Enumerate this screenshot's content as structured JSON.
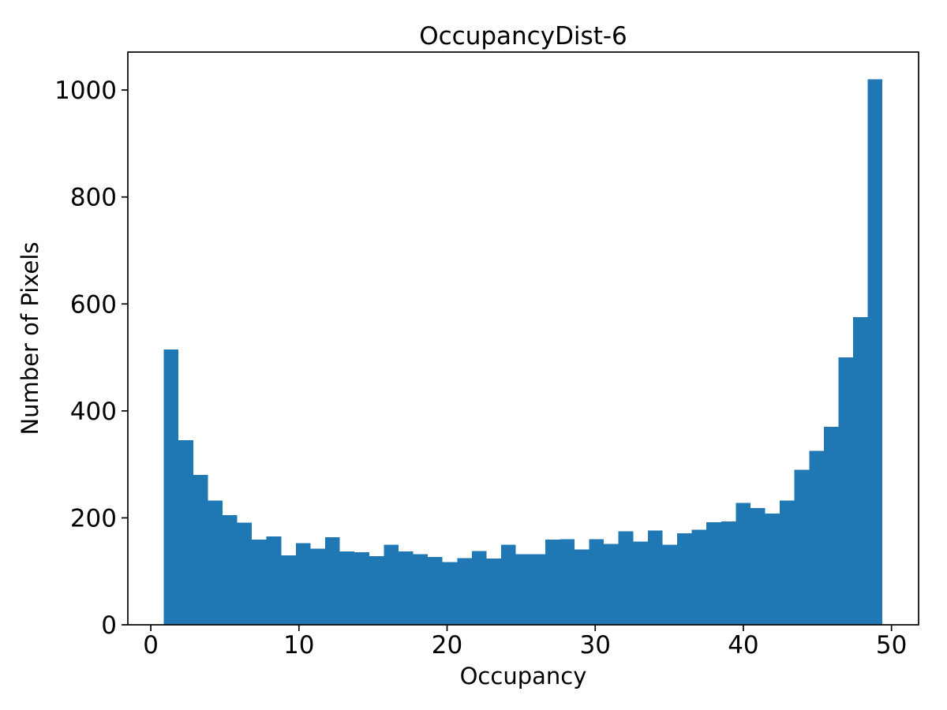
{
  "chart_data": {
    "type": "bar",
    "subtype": "histogram",
    "title": "OccupancyDist-6",
    "xlabel": "Occupancy",
    "ylabel": "Number of Pixels",
    "bar_color": "#1f77b4",
    "axis_color": "#000000",
    "background_color": "#ffffff",
    "grid": false,
    "legend_position": "none",
    "bin_start": 0.88,
    "bin_width": 0.99,
    "n_bins": 49,
    "values": [
      515,
      345,
      280,
      232,
      205,
      191,
      159,
      165,
      130,
      153,
      142,
      164,
      137,
      136,
      128,
      150,
      137,
      132,
      127,
      117,
      125,
      138,
      124,
      150,
      132,
      132,
      159,
      160,
      141,
      160,
      151,
      175,
      156,
      176,
      150,
      171,
      178,
      192,
      193,
      228,
      218,
      208,
      232,
      290,
      325,
      370,
      500,
      575,
      1020
    ],
    "xlim": [
      -1.55,
      51.83
    ],
    "ylim": [
      0,
      1071
    ],
    "xticks": [
      0,
      10,
      20,
      30,
      40,
      50
    ],
    "yticks": [
      0,
      200,
      400,
      600,
      800,
      1000
    ]
  }
}
